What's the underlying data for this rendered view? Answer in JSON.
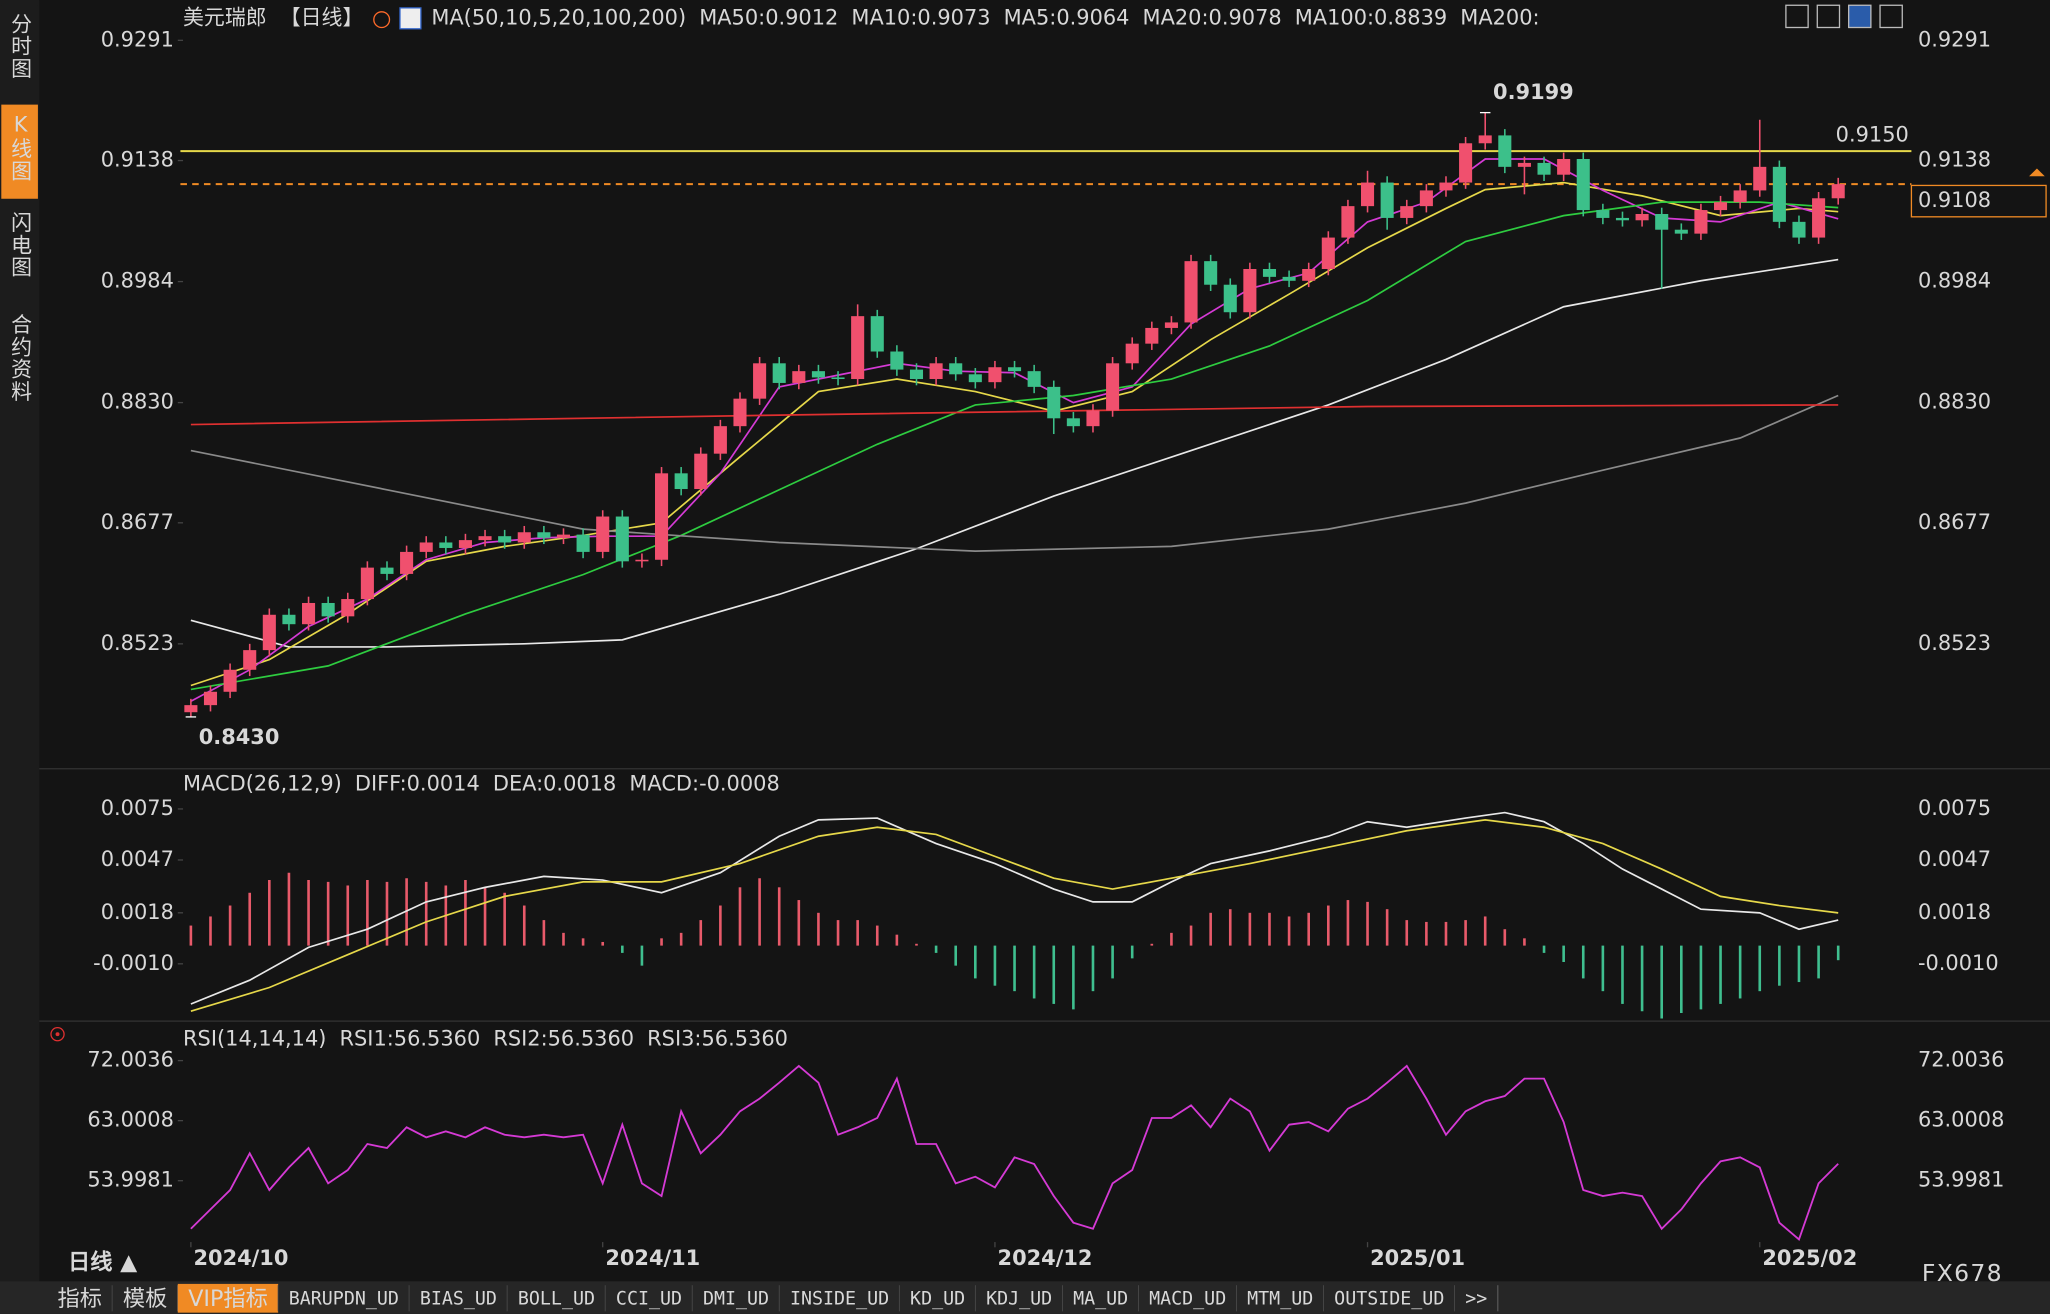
{
  "ui": {
    "sidebar": [
      "分时图",
      "K线图",
      "闪电图",
      "合约资料"
    ],
    "sidebar_active": 1,
    "period": "日线 ▲",
    "tabs": [
      "指标",
      "模板",
      "VIP指标",
      "BARUPDN_UD",
      "BIAS_UD",
      "BOLL_UD",
      "CCI_UD",
      "DMI_UD",
      "INSIDE_UD",
      "KD_UD",
      "KDJ_UD",
      "MA_UD",
      "MACD_UD",
      "MTM_UD",
      "OUTSIDE_UD",
      ">>"
    ],
    "tabs_active": 2,
    "watermark": "FX678"
  },
  "chart_data": [
    {
      "type": "candlestick",
      "title": "美元瑞郎",
      "subtitle": "【日线】",
      "indicator": "MA(50,10,5,20,100,200)",
      "xlim": [
        0,
        84
      ],
      "xticks": [
        {
          "value": 0,
          "label": "2024/10"
        },
        {
          "value": 21,
          "label": "2024/11"
        },
        {
          "value": 41,
          "label": "2024/12"
        },
        {
          "value": 60,
          "label": "2025/01"
        },
        {
          "value": 80,
          "label": "2025/02"
        }
      ],
      "ylim": [
        0.8369,
        0.9309
      ],
      "yticks": [
        0.9291,
        0.9138,
        0.8984,
        {
          "value": 0.883,
          "label": "0.8830"
        },
        0.8677,
        0.8523
      ],
      "up_color": "#f0506e",
      "down_color": "#3cc08a",
      "open": [
        0.8436,
        0.8445,
        0.8462,
        0.849,
        0.8515,
        0.856,
        0.8548,
        0.8575,
        0.8558,
        0.858,
        0.862,
        0.8612,
        0.864,
        0.8652,
        0.8645,
        0.8655,
        0.866,
        0.8652,
        0.8665,
        0.8658,
        0.8662,
        0.864,
        0.8685,
        0.8628,
        0.863,
        0.874,
        0.872,
        0.8765,
        0.88,
        0.8835,
        0.888,
        0.8855,
        0.887,
        0.8862,
        0.886,
        0.894,
        0.8895,
        0.8872,
        0.886,
        0.888,
        0.8866,
        0.8856,
        0.8875,
        0.887,
        0.885,
        0.881,
        0.88,
        0.882,
        0.888,
        0.8905,
        0.8925,
        0.8932,
        0.901,
        0.898,
        0.8945,
        0.9,
        0.899,
        0.8985,
        0.9,
        0.904,
        0.908,
        0.911,
        0.9065,
        0.908,
        0.91,
        0.911,
        0.916,
        0.917,
        0.913,
        0.9135,
        0.912,
        0.914,
        0.9075,
        0.9065,
        0.9062,
        0.907,
        0.905,
        0.9045,
        0.9075,
        0.9085,
        0.91,
        0.913,
        0.906,
        0.904,
        0.909
      ],
      "high": [
        0.8453,
        0.847,
        0.8498,
        0.8523,
        0.8568,
        0.8568,
        0.8583,
        0.8583,
        0.8588,
        0.8628,
        0.8628,
        0.8648,
        0.866,
        0.866,
        0.8663,
        0.8668,
        0.8668,
        0.8673,
        0.8673,
        0.867,
        0.867,
        0.8693,
        0.8693,
        0.8638,
        0.8748,
        0.8748,
        0.8773,
        0.8808,
        0.8843,
        0.8888,
        0.8888,
        0.8878,
        0.8878,
        0.887,
        0.8955,
        0.8948,
        0.8903,
        0.888,
        0.8888,
        0.8888,
        0.8874,
        0.8883,
        0.8883,
        0.8878,
        0.8858,
        0.8818,
        0.8828,
        0.8888,
        0.8913,
        0.8933,
        0.894,
        0.9018,
        0.9018,
        0.8988,
        0.9008,
        0.9008,
        0.8998,
        0.9008,
        0.9048,
        0.9088,
        0.9125,
        0.9118,
        0.9088,
        0.9108,
        0.9118,
        0.9168,
        0.9199,
        0.9178,
        0.9143,
        0.9143,
        0.9148,
        0.9148,
        0.9083,
        0.9073,
        0.9078,
        0.9078,
        0.9058,
        0.9083,
        0.9093,
        0.9108,
        0.919,
        0.9138,
        0.9068,
        0.9098,
        0.9116
      ],
      "low": [
        0.843,
        0.8437,
        0.8454,
        0.8482,
        0.8507,
        0.854,
        0.854,
        0.855,
        0.855,
        0.8572,
        0.8604,
        0.8604,
        0.8632,
        0.8637,
        0.8637,
        0.8647,
        0.8644,
        0.8644,
        0.865,
        0.865,
        0.8632,
        0.8632,
        0.862,
        0.862,
        0.8622,
        0.8712,
        0.8712,
        0.8757,
        0.8792,
        0.8827,
        0.8847,
        0.8847,
        0.8854,
        0.8852,
        0.8852,
        0.8887,
        0.8864,
        0.8852,
        0.8852,
        0.8858,
        0.8848,
        0.8848,
        0.8862,
        0.8842,
        0.879,
        0.8792,
        0.8792,
        0.8812,
        0.8872,
        0.8897,
        0.8917,
        0.8924,
        0.8972,
        0.8937,
        0.8937,
        0.8982,
        0.8977,
        0.8977,
        0.8992,
        0.9032,
        0.9072,
        0.905,
        0.9057,
        0.9072,
        0.9092,
        0.9102,
        0.9152,
        0.9122,
        0.9095,
        0.9112,
        0.9112,
        0.9067,
        0.9057,
        0.9054,
        0.9054,
        0.8975,
        0.9037,
        0.9037,
        0.9067,
        0.9077,
        0.9092,
        0.9052,
        0.9032,
        0.9032,
        0.9082
      ],
      "close": [
        0.8445,
        0.8462,
        0.849,
        0.8515,
        0.856,
        0.8548,
        0.8575,
        0.8558,
        0.858,
        0.862,
        0.8612,
        0.864,
        0.8652,
        0.8645,
        0.8655,
        0.866,
        0.8652,
        0.8665,
        0.8658,
        0.8662,
        0.864,
        0.8685,
        0.8628,
        0.863,
        0.874,
        0.872,
        0.8765,
        0.88,
        0.8835,
        0.888,
        0.8855,
        0.887,
        0.8862,
        0.886,
        0.894,
        0.8895,
        0.8872,
        0.886,
        0.888,
        0.8866,
        0.8856,
        0.8875,
        0.887,
        0.885,
        0.881,
        0.88,
        0.882,
        0.888,
        0.8905,
        0.8925,
        0.8932,
        0.901,
        0.898,
        0.8945,
        0.9,
        0.899,
        0.8985,
        0.9,
        0.904,
        0.908,
        0.911,
        0.9065,
        0.908,
        0.91,
        0.911,
        0.916,
        0.917,
        0.913,
        0.9135,
        0.912,
        0.914,
        0.9075,
        0.9065,
        0.9062,
        0.907,
        0.905,
        0.9045,
        0.9075,
        0.9085,
        0.91,
        0.913,
        0.906,
        0.904,
        0.909,
        0.9108
      ],
      "series": [
        {
          "name": "MA50:0.9012",
          "color": "#e8e8e8",
          "x": [
            0,
            5,
            10,
            17,
            22,
            30,
            37,
            44,
            51,
            58,
            64,
            70,
            77,
            84
          ],
          "values": [
            0.8553,
            0.8519,
            0.8519,
            0.8523,
            0.8528,
            0.8586,
            0.8644,
            0.8711,
            0.8769,
            0.8827,
            0.8885,
            0.8952,
            0.8985,
            0.9012
          ]
        },
        {
          "name": "MA10:0.9073",
          "color": "#e6d84a",
          "x": [
            0,
            4,
            8,
            12,
            16,
            20,
            24,
            28,
            32,
            36,
            40,
            44,
            48,
            52,
            56,
            60,
            64,
            66,
            70,
            74,
            78,
            82,
            84
          ],
          "values": [
            0.847,
            0.8503,
            0.8561,
            0.8628,
            0.8647,
            0.8661,
            0.8677,
            0.8761,
            0.8844,
            0.886,
            0.8844,
            0.8819,
            0.8844,
            0.891,
            0.8968,
            0.9027,
            0.9077,
            0.9101,
            0.911,
            0.9093,
            0.9068,
            0.9077,
            0.9073
          ]
        },
        {
          "name": "MA5:0.9064",
          "color": "#d53ad5",
          "x": [
            0,
            3,
            6,
            9,
            12,
            15,
            18,
            21,
            24,
            27,
            30,
            33,
            36,
            39,
            42,
            45,
            48,
            51,
            54,
            57,
            60,
            63,
            66,
            69,
            72,
            75,
            78,
            81,
            84
          ],
          "values": [
            0.845,
            0.849,
            0.8545,
            0.858,
            0.863,
            0.8652,
            0.8658,
            0.866,
            0.866,
            0.874,
            0.885,
            0.8865,
            0.888,
            0.887,
            0.8868,
            0.883,
            0.885,
            0.893,
            0.8975,
            0.8995,
            0.906,
            0.9085,
            0.914,
            0.914,
            0.91,
            0.9065,
            0.906,
            0.9085,
            0.9064
          ]
        },
        {
          "name": "MA20:0.9078",
          "color": "#2ecc40",
          "x": [
            0,
            7,
            14,
            20,
            25,
            30,
            35,
            40,
            45,
            50,
            55,
            60,
            65,
            70,
            75,
            80,
            84
          ],
          "values": [
            0.8465,
            0.8495,
            0.8561,
            0.8611,
            0.8661,
            0.8719,
            0.8777,
            0.8827,
            0.8839,
            0.886,
            0.8902,
            0.896,
            0.9035,
            0.9068,
            0.9085,
            0.9085,
            0.9078
          ]
        },
        {
          "name": "MA100:0.8839",
          "color": "#8a8a8a",
          "x": [
            0,
            10,
            20,
            30,
            40,
            50,
            58,
            65,
            72,
            79,
            84
          ],
          "values": [
            0.8769,
            0.8719,
            0.8669,
            0.8652,
            0.8641,
            0.8647,
            0.8669,
            0.8702,
            0.8744,
            0.8785,
            0.8839
          ]
        },
        {
          "name": "MA200:",
          "color": "#e03030",
          "x": [
            0,
            30,
            60,
            84
          ],
          "values": [
            0.8802,
            0.8814,
            0.8825,
            0.8827
          ]
        }
      ],
      "hlines": [
        {
          "value": 0.915,
          "label": "0.9150",
          "color": "#e6d84a",
          "style": "solid"
        },
        {
          "value": 0.9108,
          "label": "0.9108",
          "color": "#f08a24",
          "style": "dashed"
        }
      ],
      "annotations": [
        {
          "index": 66,
          "value": 0.9199,
          "label": "0.9199",
          "color": "#f0506e"
        },
        {
          "index": 0,
          "value": 0.843,
          "label": "0.8430",
          "color": "#3cc08a"
        }
      ]
    },
    {
      "type": "macd",
      "title": "MACD(26,12,9)",
      "xlim": [
        0,
        84
      ],
      "ylim": [
        -0.004,
        0.0087
      ],
      "yticks": [
        0.0075,
        0.0047,
        0.0018,
        {
          "value": -0.001,
          "label": "-0.0010"
        }
      ],
      "histogram": {
        "name": "MACD:-0.0008",
        "color": "#d53ad5",
        "up_color": "#e85a6a",
        "down_color": "#3fbf8f",
        "values": [
          0.0011,
          0.0016,
          0.0022,
          0.0029,
          0.0036,
          0.004,
          0.0036,
          0.0035,
          0.0033,
          0.0036,
          0.0035,
          0.0037,
          0.0035,
          0.0033,
          0.0036,
          0.0032,
          0.0029,
          0.0022,
          0.0014,
          0.0007,
          0.0004,
          0.0002,
          -0.0004,
          -0.0011,
          0.0004,
          0.0007,
          0.0014,
          0.0022,
          0.0032,
          0.0037,
          0.0032,
          0.0025,
          0.0018,
          0.0014,
          0.0014,
          0.0011,
          0.0006,
          0.0001,
          -0.0004,
          -0.0011,
          -0.0018,
          -0.0022,
          -0.0025,
          -0.0029,
          -0.0032,
          -0.0035,
          -0.0025,
          -0.0018,
          -0.0007,
          0.0001,
          0.0007,
          0.0011,
          0.0018,
          0.002,
          0.0018,
          0.0018,
          0.0016,
          0.0018,
          0.0022,
          0.0025,
          0.0024,
          0.002,
          0.0014,
          0.0013,
          0.0013,
          0.0014,
          0.0016,
          0.0009,
          0.0004,
          -0.0004,
          -0.0009,
          -0.0018,
          -0.0025,
          -0.0032,
          -0.0036,
          -0.004,
          -0.0037,
          -0.0035,
          -0.0032,
          -0.0029,
          -0.0025,
          -0.0022,
          -0.002,
          -0.0018,
          -0.0008
        ]
      },
      "series": [
        {
          "name": "DIFF:0.0014",
          "color": "#e8e8e8",
          "x": [
            0,
            3,
            6,
            9,
            12,
            15,
            18,
            21,
            24,
            27,
            30,
            32,
            35,
            38,
            41,
            44,
            46,
            48,
            50,
            52,
            55,
            58,
            60,
            62,
            65,
            67,
            69,
            71,
            73,
            75,
            77,
            80,
            82,
            84
          ],
          "values": [
            -0.0032,
            -0.0019,
            -0.0001,
            0.0009,
            0.0024,
            0.0032,
            0.0038,
            0.0036,
            0.0029,
            0.004,
            0.006,
            0.0069,
            0.007,
            0.0056,
            0.0045,
            0.0031,
            0.0024,
            0.0024,
            0.0035,
            0.0045,
            0.0052,
            0.006,
            0.0068,
            0.0065,
            0.007,
            0.0073,
            0.0068,
            0.0056,
            0.0042,
            0.0031,
            0.002,
            0.0018,
            0.0009,
            0.0014
          ]
        },
        {
          "name": "DEA:0.0018",
          "color": "#e6d84a",
          "x": [
            0,
            4,
            8,
            12,
            16,
            20,
            24,
            28,
            32,
            35,
            38,
            41,
            44,
            47,
            50,
            54,
            58,
            62,
            66,
            69,
            72,
            75,
            78,
            81,
            84
          ],
          "values": [
            -0.0036,
            -0.0023,
            -0.0005,
            0.0013,
            0.0027,
            0.0035,
            0.0035,
            0.0045,
            0.006,
            0.0065,
            0.0061,
            0.0049,
            0.0037,
            0.0031,
            0.0037,
            0.0045,
            0.0054,
            0.0063,
            0.0069,
            0.0065,
            0.0056,
            0.0042,
            0.0027,
            0.0022,
            0.0018
          ]
        }
      ]
    },
    {
      "type": "line",
      "title": "RSI(14,14,14)",
      "xlim": [
        0,
        84
      ],
      "ylim": [
        44.8,
        74.2
      ],
      "yticks": [
        72.0036,
        63.0008,
        53.9981
      ],
      "color": "#d53ad5",
      "legend": [
        {
          "name": "RSI1:56.5360",
          "color": "#e8e8e8"
        },
        {
          "name": "RSI2:56.5360",
          "color": "#e6d84a"
        },
        {
          "name": "RSI3:56.5360",
          "color": "#d53ad5"
        }
      ],
      "values": [
        46.8,
        49.7,
        52.6,
        58.1,
        52.6,
        56,
        58.9,
        53.6,
        55.6,
        59.5,
        58.9,
        62,
        60.5,
        61.4,
        60.5,
        62,
        60.9,
        60.5,
        60.9,
        60.5,
        60.9,
        53.6,
        62.4,
        53.6,
        51.7,
        64.4,
        58.1,
        60.9,
        64.4,
        66.3,
        68.7,
        71.2,
        68.7,
        60.9,
        62,
        63.4,
        69.3,
        59.5,
        59.5,
        53.6,
        54.6,
        53,
        57.5,
        56.5,
        51.7,
        47.7,
        46.8,
        53.6,
        55.6,
        63.4,
        63.4,
        65.3,
        62,
        66.3,
        64.4,
        58.5,
        62.4,
        62.8,
        61.4,
        64.8,
        66.3,
        68.7,
        71.2,
        66.3,
        60.9,
        64.4,
        65.9,
        66.7,
        69.3,
        69.3,
        62.8,
        52.6,
        51.7,
        52.2,
        51.7,
        46.8,
        49.7,
        53.6,
        56.9,
        57.5,
        56,
        47.7,
        45.2,
        53.6,
        56.536
      ]
    }
  ]
}
